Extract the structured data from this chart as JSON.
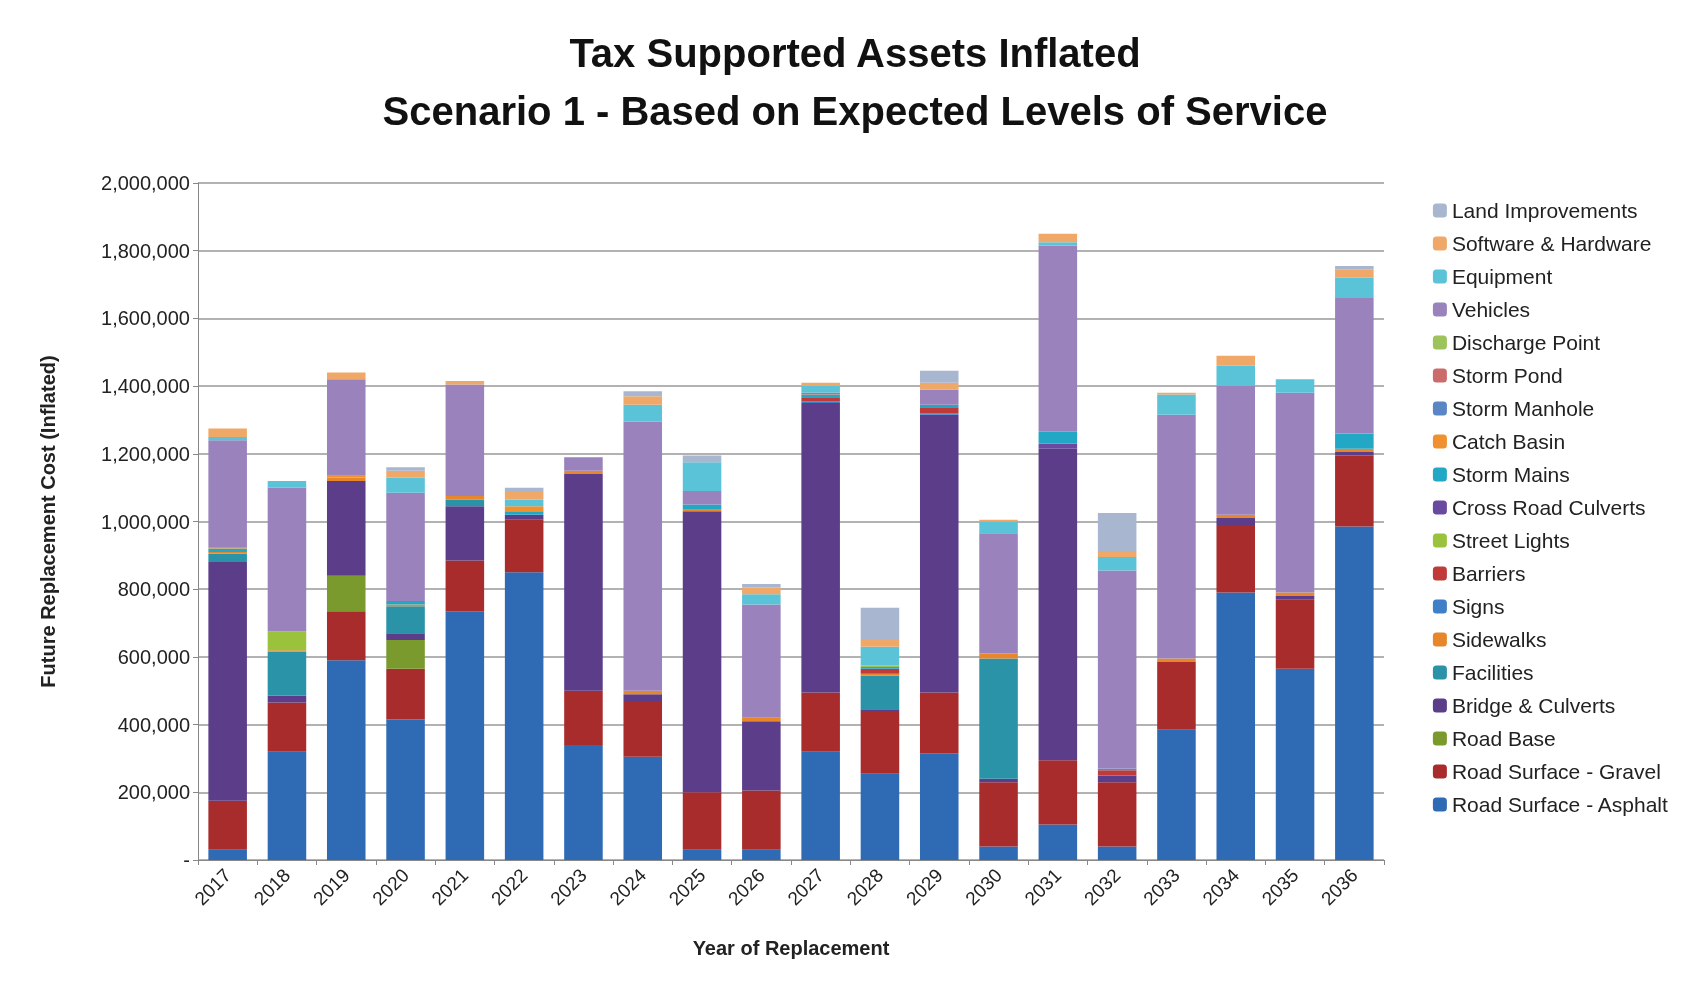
{
  "chart_data": {
    "type": "bar",
    "title": "Tax Supported Assets Inflated",
    "subtitle": "Scenario 1 - Based on Expected Levels of Service",
    "xlabel": "Year of Replacement",
    "ylabel": "Future Replacement Cost (Inflated)",
    "categories": [
      "2017",
      "2018",
      "2019",
      "2020",
      "2021",
      "2022",
      "2023",
      "2024",
      "2025",
      "2026",
      "2027",
      "2028",
      "2029",
      "2030",
      "2031",
      "2032",
      "2033",
      "2034",
      "2035",
      "2036"
    ],
    "stacked": true,
    "grid": "y",
    "legend": "right",
    "ylim": [
      0,
      2000000
    ],
    "yticks": [
      {
        "value": 0,
        "label": "-"
      },
      {
        "value": 200000,
        "label": "200,000"
      },
      {
        "value": 400000,
        "label": "400,000"
      },
      {
        "value": 600000,
        "label": "600,000"
      },
      {
        "value": 800000,
        "label": "800,000"
      },
      {
        "value": 1000000,
        "label": "1,000,000"
      },
      {
        "value": 1200000,
        "label": "1,200,000"
      },
      {
        "value": 1400000,
        "label": "1,400,000"
      },
      {
        "value": 1600000,
        "label": "1,600,000"
      },
      {
        "value": 1800000,
        "label": "1,800,000"
      },
      {
        "value": 2000000,
        "label": "2,000,000"
      }
    ],
    "series": [
      {
        "name": "Road Surface - Asphalt",
        "color": "#2f6bb5",
        "values": [
          30000,
          320000,
          590000,
          415000,
          735000,
          850000,
          340000,
          305000,
          30000,
          30000,
          320000,
          255000,
          315000,
          40000,
          105000,
          40000,
          385000,
          790000,
          565000,
          985000
        ]
      },
      {
        "name": "Road Surface - Gravel",
        "color": "#a82c2c",
        "values": [
          145000,
          145000,
          145000,
          150000,
          150000,
          155000,
          160000,
          165000,
          170000,
          175000,
          175000,
          185000,
          180000,
          190000,
          190000,
          190000,
          200000,
          200000,
          205000,
          210000
        ]
      },
      {
        "name": "Road Base",
        "color": "#7a9a2e",
        "values": [
          0,
          0,
          105000,
          85000,
          0,
          0,
          0,
          0,
          0,
          0,
          0,
          0,
          0,
          0,
          0,
          0,
          0,
          0,
          0,
          0
        ]
      },
      {
        "name": "Bridge & Culverts",
        "color": "#5b3d8a",
        "values": [
          705000,
          20000,
          280000,
          20000,
          160000,
          15000,
          640000,
          20000,
          830000,
          205000,
          855000,
          5000,
          820000,
          10000,
          920000,
          20000,
          0,
          20000,
          10000,
          10000
        ]
      },
      {
        "name": "Facilities",
        "color": "#2a93a8",
        "values": [
          25000,
          130000,
          0,
          80000,
          20000,
          0,
          0,
          0,
          0,
          0,
          0,
          100000,
          0,
          355000,
          0,
          0,
          0,
          0,
          0,
          0
        ]
      },
      {
        "name": "Sidewalks",
        "color": "#e8862b",
        "values": [
          5000,
          5000,
          10000,
          5000,
          10000,
          0,
          10000,
          10000,
          5000,
          10000,
          0,
          5000,
          0,
          15000,
          0,
          0,
          10000,
          10000,
          10000,
          10000
        ]
      },
      {
        "name": "Signs",
        "color": "#3f7fc8",
        "values": [
          0,
          0,
          0,
          0,
          0,
          0,
          0,
          0,
          0,
          0,
          5000,
          0,
          5000,
          0,
          0,
          0,
          0,
          0,
          0,
          0
        ]
      },
      {
        "name": "Barriers",
        "color": "#c03a3a",
        "values": [
          0,
          0,
          0,
          0,
          0,
          0,
          0,
          0,
          0,
          0,
          10000,
          15000,
          15000,
          0,
          0,
          15000,
          0,
          0,
          0,
          0
        ]
      },
      {
        "name": "Street Lights",
        "color": "#9bc23c",
        "values": [
          0,
          55000,
          0,
          0,
          0,
          0,
          0,
          0,
          0,
          0,
          0,
          0,
          0,
          0,
          0,
          0,
          0,
          0,
          0,
          0
        ]
      },
      {
        "name": "Cross Road Culverts",
        "color": "#6a4aa0",
        "values": [
          0,
          0,
          0,
          0,
          0,
          0,
          0,
          0,
          0,
          0,
          0,
          0,
          0,
          0,
          15000,
          0,
          0,
          0,
          0,
          0
        ]
      },
      {
        "name": "Storm Mains",
        "color": "#22a7c4",
        "values": [
          10000,
          0,
          0,
          10000,
          0,
          10000,
          0,
          0,
          15000,
          0,
          10000,
          5000,
          10000,
          0,
          35000,
          0,
          0,
          0,
          0,
          45000
        ]
      },
      {
        "name": "Catch Basin",
        "color": "#f0902e",
        "values": [
          5000,
          0,
          5000,
          0,
          0,
          15000,
          0,
          0,
          0,
          0,
          0,
          0,
          0,
          0,
          0,
          0,
          0,
          0,
          0,
          0
        ]
      },
      {
        "name": "Storm Manhole",
        "color": "#5b86c6",
        "values": [
          0,
          0,
          0,
          0,
          0,
          0,
          0,
          0,
          0,
          0,
          0,
          0,
          0,
          0,
          0,
          5000,
          0,
          0,
          0,
          0
        ]
      },
      {
        "name": "Storm Pond",
        "color": "#cc6b6b",
        "values": [
          0,
          0,
          0,
          0,
          0,
          0,
          0,
          0,
          0,
          0,
          5000,
          0,
          0,
          0,
          0,
          0,
          0,
          0,
          0,
          0
        ]
      },
      {
        "name": "Discharge Point",
        "color": "#9cc45a",
        "values": [
          0,
          0,
          0,
          0,
          0,
          0,
          0,
          0,
          0,
          0,
          0,
          5000,
          0,
          0,
          0,
          0,
          0,
          0,
          0,
          0
        ]
      },
      {
        "name": "Vehicles",
        "color": "#9a82bd",
        "values": [
          315000,
          425000,
          285000,
          320000,
          330000,
          0,
          40000,
          795000,
          40000,
          335000,
          0,
          0,
          45000,
          355000,
          550000,
          585000,
          720000,
          380000,
          590000,
          400000
        ]
      },
      {
        "name": "Equipment",
        "color": "#5bc3d8",
        "values": [
          10000,
          20000,
          0,
          45000,
          0,
          20000,
          0,
          50000,
          85000,
          30000,
          20000,
          55000,
          0,
          35000,
          10000,
          40000,
          60000,
          60000,
          40000,
          60000
        ]
      },
      {
        "name": "Software & Hardware",
        "color": "#f0a868",
        "values": [
          25000,
          0,
          20000,
          20000,
          10000,
          25000,
          0,
          25000,
          0,
          20000,
          10000,
          20000,
          20000,
          5000,
          25000,
          15000,
          5000,
          30000,
          0,
          25000
        ]
      },
      {
        "name": "Land Improvements",
        "color": "#a8b6d0",
        "values": [
          0,
          0,
          0,
          10000,
          0,
          10000,
          0,
          15000,
          20000,
          10000,
          0,
          95000,
          35000,
          0,
          0,
          115000,
          0,
          0,
          0,
          10000
        ]
      }
    ]
  }
}
